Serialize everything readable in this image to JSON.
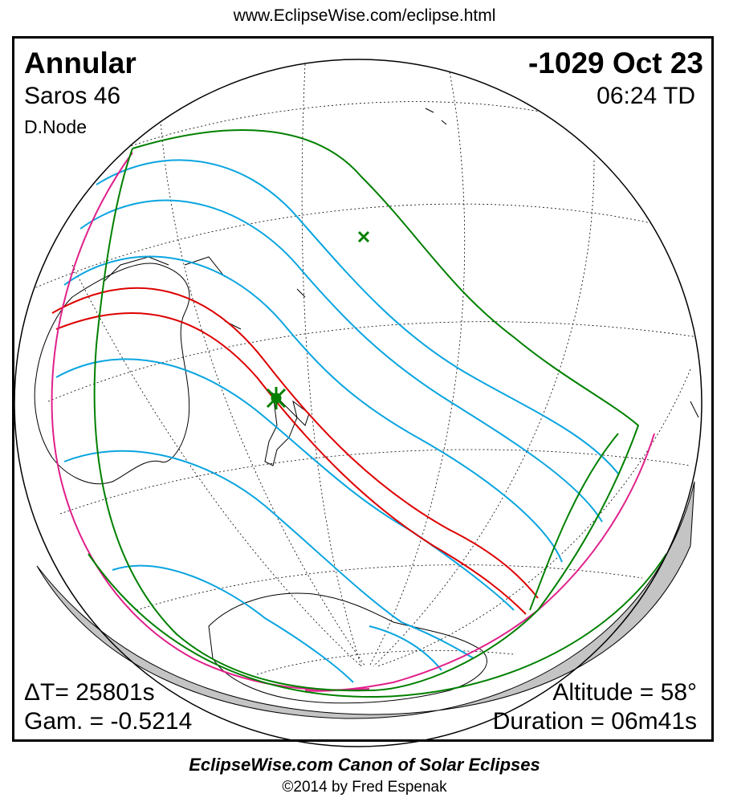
{
  "url": "www.EclipseWise.com/eclipse.html",
  "eclipse": {
    "type": "Annular",
    "date": "-1029 Oct 23",
    "saros": "Saros  46",
    "time": "06:24 TD",
    "node": "D.Node",
    "delta_t": "ΔT=  25801s",
    "gamma": "Gam. = -0.5214",
    "altitude": "Altitude = 58°",
    "duration": "Duration = 06m41s"
  },
  "footer": {
    "title": "EclipseWise.com Canon of Solar Eclipses",
    "copyright": "©2014 by Fred Espenak"
  },
  "colors": {
    "central_path": "#dd0000",
    "penumbral_limits": "#008000",
    "magnitude_curves": "#0aa5e0",
    "rise_set_curves": "#e0208a",
    "night_side": "#c4c4c4",
    "grid": "#000000"
  }
}
